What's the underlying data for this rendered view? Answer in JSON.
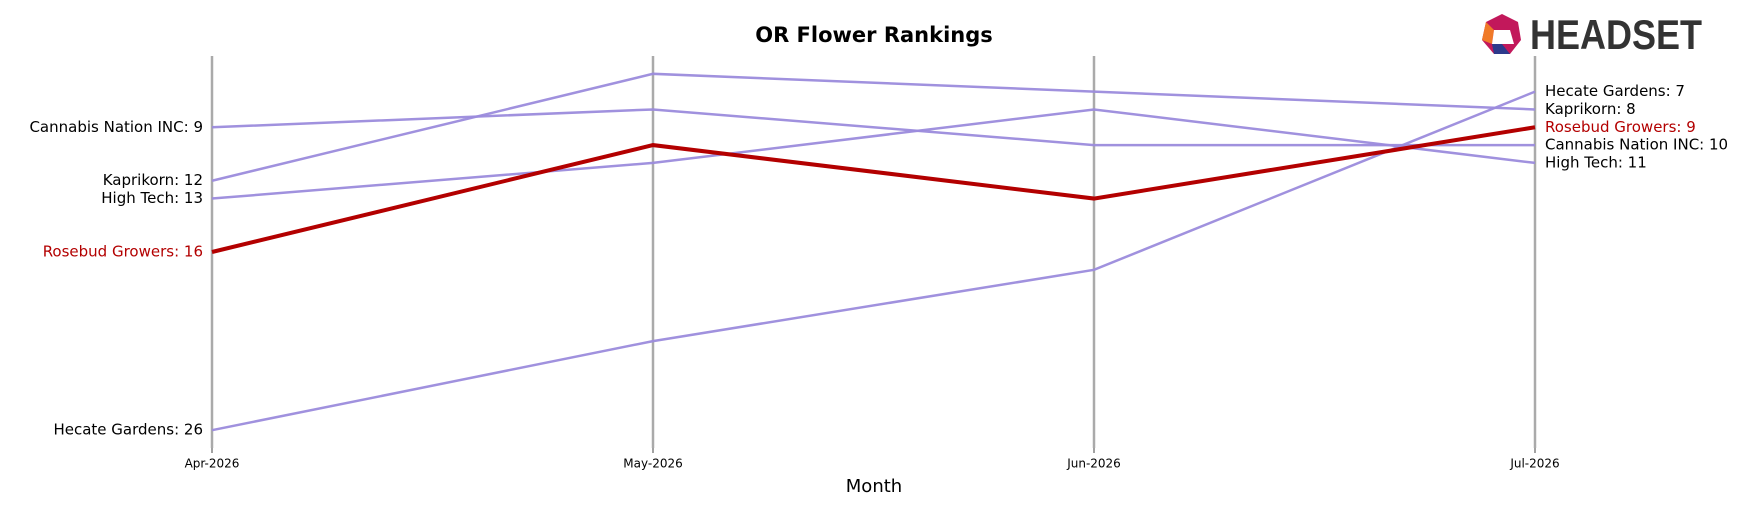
{
  "chart_data": {
    "type": "line",
    "title": "OR Flower Rankings",
    "x_label": "Month",
    "logo": "HEADSET",
    "categories": [
      "Apr-2026",
      "May-2026",
      "Jun-2026",
      "Jul-2026"
    ],
    "ylim": [
      27,
      5
    ],
    "grid": true,
    "series": [
      {
        "name": "Cannabis Nation INC",
        "color": "#9b8bdc",
        "values": [
          9,
          8,
          10,
          10
        ],
        "value_labels": [
          "Cannabis Nation INC: 9",
          null,
          null,
          "Cannabis Nation INC: 10"
        ]
      },
      {
        "name": "Kaprikorn",
        "color": "#9b8bdc",
        "values": [
          12,
          6,
          7,
          8
        ],
        "value_labels": [
          "Kaprikorn: 12",
          null,
          null,
          "Kaprikorn: 8"
        ]
      },
      {
        "name": "High Tech",
        "color": "#9b8bdc",
        "values": [
          13,
          11,
          8,
          11
        ],
        "value_labels": [
          "High Tech: 13",
          null,
          null,
          "High Tech: 11"
        ]
      },
      {
        "name": "Hecate Gardens",
        "color": "#9b8bdc",
        "values": [
          26,
          21,
          17,
          7
        ],
        "value_labels": [
          "Hecate Gardens: 26",
          null,
          null,
          "Hecate Gardens: 7"
        ]
      },
      {
        "name": "Rosebud Growers",
        "color": "#b30000",
        "highlight": true,
        "values": [
          16,
          10,
          13,
          9
        ],
        "value_labels": [
          "Rosebud Growers: 16",
          null,
          null,
          "Rosebud Growers: 9"
        ]
      }
    ]
  }
}
